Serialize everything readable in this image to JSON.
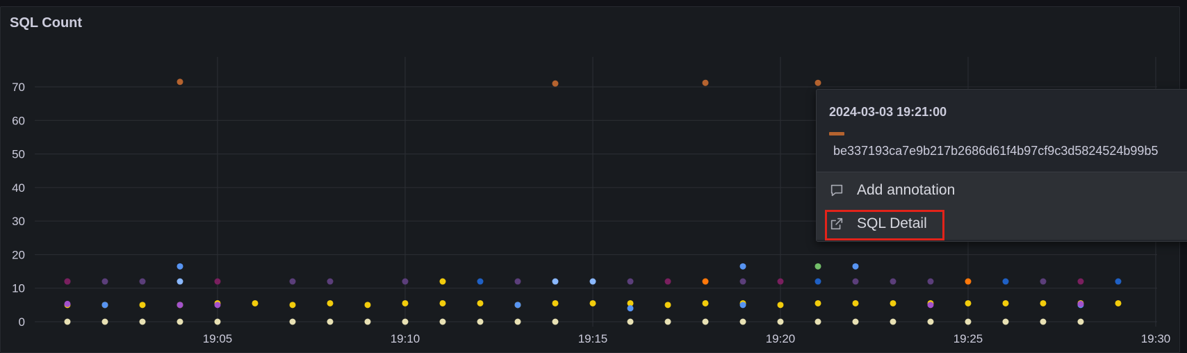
{
  "panel": {
    "title": "SQL Count"
  },
  "colors": {
    "background": "#181b1f",
    "grid": "#2c2f35",
    "axis_text": "#ccccdc",
    "highlight": "#e2231a"
  },
  "chart_data": {
    "type": "scatter",
    "title": "SQL Count",
    "xlabel": "",
    "ylabel": "",
    "x_range": [
      "19:01",
      "19:30"
    ],
    "ylim": [
      0,
      80
    ],
    "y_ticks": [
      0,
      10,
      20,
      30,
      40,
      50,
      60,
      70
    ],
    "x_ticks": [
      "19:05",
      "19:10",
      "19:15",
      "19:20",
      "19:25",
      "19:30"
    ],
    "grid": true,
    "legend": "none",
    "series": [
      {
        "color": "#e8e1b4",
        "points": [
          [
            "19:01",
            0
          ],
          [
            "19:02",
            0
          ],
          [
            "19:03",
            0
          ],
          [
            "19:04",
            0
          ],
          [
            "19:05",
            0
          ],
          [
            "19:07",
            0
          ],
          [
            "19:08",
            0
          ],
          [
            "19:09",
            0
          ],
          [
            "19:10",
            0
          ],
          [
            "19:11",
            0
          ],
          [
            "19:12",
            0
          ],
          [
            "19:13",
            0
          ],
          [
            "19:14",
            0
          ],
          [
            "19:16",
            0
          ],
          [
            "19:17",
            0
          ],
          [
            "19:18",
            0
          ],
          [
            "19:19",
            0
          ],
          [
            "19:20",
            0
          ],
          [
            "19:21",
            0
          ],
          [
            "19:22",
            0
          ],
          [
            "19:23",
            0
          ],
          [
            "19:24",
            0
          ],
          [
            "19:25",
            0
          ],
          [
            "19:26",
            0
          ],
          [
            "19:27",
            0
          ],
          [
            "19:28",
            0
          ]
        ]
      },
      {
        "color": "#f2cc0c",
        "points": [
          [
            "19:01",
            5
          ],
          [
            "19:02",
            5
          ],
          [
            "19:03",
            5
          ],
          [
            "19:04",
            5
          ],
          [
            "19:05",
            5.5
          ],
          [
            "19:06",
            5.5
          ],
          [
            "19:07",
            5
          ],
          [
            "19:08",
            5.5
          ],
          [
            "19:09",
            5
          ],
          [
            "19:10",
            5.5
          ],
          [
            "19:11",
            5.5
          ],
          [
            "19:12",
            5.5
          ],
          [
            "19:13",
            5
          ],
          [
            "19:14",
            5.5
          ],
          [
            "19:15",
            5.5
          ],
          [
            "19:16",
            5.5
          ],
          [
            "19:17",
            5
          ],
          [
            "19:18",
            5.5
          ],
          [
            "19:19",
            5.5
          ],
          [
            "19:20",
            5
          ],
          [
            "19:21",
            5.5
          ],
          [
            "19:22",
            5.5
          ],
          [
            "19:23",
            5.5
          ],
          [
            "19:24",
            5.5
          ],
          [
            "19:25",
            5.5
          ],
          [
            "19:26",
            5.5
          ],
          [
            "19:27",
            5.5
          ],
          [
            "19:28",
            5.5
          ],
          [
            "19:29",
            5.5
          ]
        ]
      },
      {
        "color": "#5b3e7a",
        "points": [
          [
            "19:01",
            12
          ],
          [
            "19:02",
            12
          ],
          [
            "19:03",
            12
          ],
          [
            "19:07",
            12
          ],
          [
            "19:08",
            12
          ],
          [
            "19:10",
            12
          ],
          [
            "19:13",
            12
          ],
          [
            "19:16",
            12
          ],
          [
            "19:19",
            12
          ],
          [
            "19:22",
            12
          ],
          [
            "19:23",
            12
          ],
          [
            "19:24",
            12
          ],
          [
            "19:27",
            12
          ]
        ]
      },
      {
        "color": "#7a1f5e",
        "points": [
          [
            "19:01",
            12
          ],
          [
            "19:05",
            12
          ],
          [
            "19:17",
            12
          ],
          [
            "19:20",
            12
          ],
          [
            "19:28",
            12
          ]
        ]
      },
      {
        "color": "#f2cc0c",
        "points": [
          [
            "19:11",
            12
          ]
        ]
      },
      {
        "color": "#8ab8ff",
        "points": [
          [
            "19:04",
            12
          ],
          [
            "19:14",
            12
          ],
          [
            "19:15",
            12
          ]
        ]
      },
      {
        "color": "#1f60c4",
        "points": [
          [
            "19:12",
            12
          ],
          [
            "19:21",
            12
          ],
          [
            "19:26",
            12
          ],
          [
            "19:29",
            12
          ]
        ]
      },
      {
        "color": "#ff780a",
        "points": [
          [
            "19:18",
            12
          ],
          [
            "19:25",
            12
          ]
        ]
      },
      {
        "color": "#5794f2",
        "points": [
          [
            "19:04",
            16.5
          ],
          [
            "19:19",
            16.5
          ],
          [
            "19:22",
            16.5
          ],
          [
            "19:02",
            5
          ],
          [
            "19:13",
            5
          ],
          [
            "19:16",
            4
          ],
          [
            "19:19",
            5
          ],
          [
            "19:28",
            5
          ]
        ]
      },
      {
        "color": "#73bf69",
        "points": [
          [
            "19:21",
            16.5
          ]
        ]
      },
      {
        "color": "#b5632f",
        "points": [
          [
            "19:04",
            71.5
          ],
          [
            "19:14",
            71
          ],
          [
            "19:18",
            71.2
          ],
          [
            "19:21",
            71.2
          ]
        ]
      },
      {
        "color": "#a352cc",
        "points": [
          [
            "19:01",
            5.3
          ],
          [
            "19:04",
            5
          ],
          [
            "19:05",
            5
          ],
          [
            "19:24",
            5
          ],
          [
            "19:28",
            5.3
          ]
        ]
      }
    ]
  },
  "tooltip": {
    "time": "2024-03-03 19:21:00",
    "swatch_color": "#b5632f",
    "series_name": "be337193ca7e9b217b2686d61f4b97cf9c3d5824524b99b5",
    "menu": {
      "add_annotation": "Add annotation",
      "sql_detail": "SQL Detail"
    },
    "icons": {
      "add_annotation": "comment-icon",
      "sql_detail": "external-link-icon"
    }
  }
}
